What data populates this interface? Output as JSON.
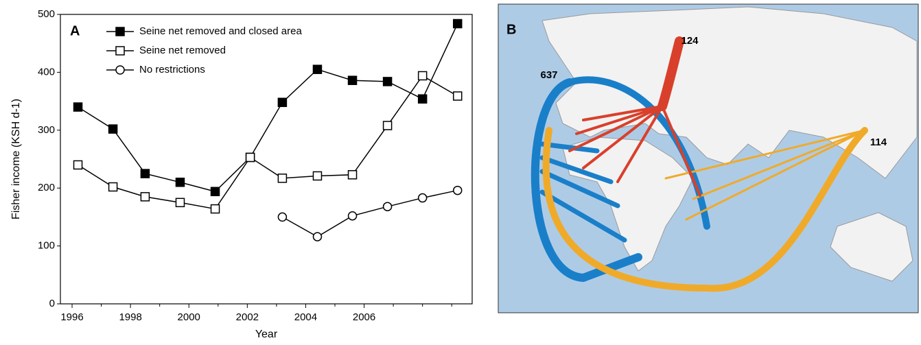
{
  "chart_data": {
    "type": "line",
    "panel_label": "A",
    "x_label": "Year",
    "y_label": "Fisher income (KSH d-1)",
    "x": [
      1996.2,
      1997.4,
      1998.5,
      1999.7,
      2000.9,
      2002.1,
      2003.2,
      2004.4,
      2005.6,
      2006.8,
      2008.0,
      2009.2
    ],
    "series": [
      {
        "name": "Seine net removed and closed area",
        "color": "#000000",
        "marker": "filled-square",
        "values": [
          340,
          302,
          225,
          210,
          194,
          253,
          348,
          405,
          386,
          384,
          354,
          484
        ]
      },
      {
        "name": "Seine net removed",
        "color": "#000000",
        "marker": "open-square",
        "values": [
          240,
          202,
          185,
          175,
          164,
          253,
          217,
          221,
          223,
          308,
          394,
          359
        ]
      },
      {
        "name": "No restrictions",
        "color": "#000000",
        "marker": "open-circle",
        "values": [
          null,
          null,
          null,
          null,
          null,
          null,
          150,
          116,
          152,
          168,
          183,
          196
        ]
      }
    ],
    "xlim": [
      1995.6,
      2009.7
    ],
    "xticks": [
      1996,
      1998,
      2000,
      2002,
      2004,
      2006
    ],
    "xminorticks": [
      1997,
      1999,
      2001,
      2003,
      2005,
      2007,
      2008,
      2009
    ],
    "ylim": [
      0,
      500
    ],
    "yticks": [
      0,
      100,
      200,
      300,
      400,
      500
    ],
    "legend": "top-left",
    "grid": false
  },
  "map": {
    "panel_label": "B",
    "labels": [
      {
        "text": "637",
        "color": "#1a7fc9"
      },
      {
        "text": "124",
        "color": "#d9402b"
      },
      {
        "text": "114",
        "color": "#f0aa2a"
      }
    ]
  }
}
